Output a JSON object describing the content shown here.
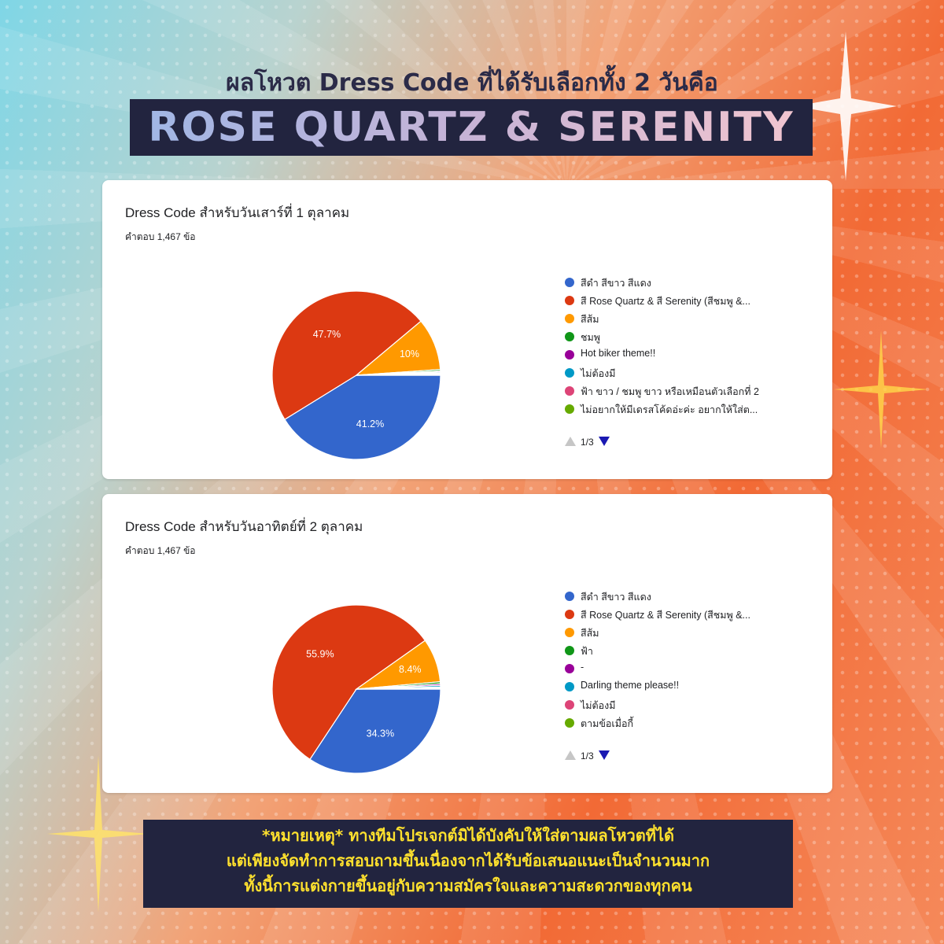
{
  "header": {
    "subtitle": "ผลโหวต Dress Code ที่ได้รับเลือกทั้ง 2 วันคือ",
    "title": "ROSE QUARTZ & SERENITY"
  },
  "cards": [
    {
      "title": "Dress Code สำหรับวันเสาร์ที่ 1 ตุลาคม",
      "responses": "คำตอบ 1,467 ข้อ",
      "pager": "1/3"
    },
    {
      "title": "Dress Code สำหรับวันอาทิตย์ที่ 2 ตุลาคม",
      "responses": "คำตอบ 1,467 ข้อ",
      "pager": "1/3"
    }
  ],
  "chart_data": [
    {
      "type": "pie",
      "title": "Dress Code สำหรับวันเสาร์ที่ 1 ตุลาคม",
      "categories": [
        "สีดำ สีขาว สีแดง",
        "สี Rose Quartz & สี Serenity (สีชมพู &...",
        "สีส้ม",
        "ชมพู",
        "Hot biker theme!!",
        "ไม่ต้องมี",
        "ฟ้า ขาว / ชมพู ขาว หรือเหมือนตัวเลือกที่ 2",
        "ไม่อยากให้มีเดรสโค้ดอ่ะค่ะ อยากให้ใส่ต..."
      ],
      "values": [
        41.2,
        47.7,
        10,
        0.3,
        0.2,
        0.2,
        0.2,
        0.2
      ],
      "labels": [
        "41.2%",
        "47.7%",
        "10%"
      ],
      "colors": [
        "#3366cc",
        "#dc3912",
        "#ff9900",
        "#109618",
        "#990099",
        "#0099c6",
        "#dd4477",
        "#66aa00"
      ]
    },
    {
      "type": "pie",
      "title": "Dress Code สำหรับวันอาทิตย์ที่ 2 ตุลาคม",
      "categories": [
        "สีดำ สีขาว สีแดง",
        "สี Rose Quartz & สี Serenity (สีชมพู &...",
        "สีส้ม",
        "ฟ้า",
        "-",
        "Darling theme please!!",
        "ไม่ต้องมี",
        "ตามข้อเมื่อกี้"
      ],
      "values": [
        34.3,
        55.9,
        8.4,
        0.4,
        0.3,
        0.3,
        0.2,
        0.2
      ],
      "labels": [
        "34.3%",
        "55.9%",
        "8.4%"
      ],
      "colors": [
        "#3366cc",
        "#dc3912",
        "#ff9900",
        "#109618",
        "#990099",
        "#0099c6",
        "#dd4477",
        "#66aa00"
      ]
    }
  ],
  "note": {
    "line1": "*หมายเหตุ* ทางทีมโปรเจกต์มิได้บังคับให้ใส่ตามผลโหวตที่ได้",
    "line2": "แต่เพียงจัดทำการสอบถามขึ้นเนื่องจากได้รับข้อเสนอแนะเป็นจำนวนมาก",
    "line3": "ทั้งนี้การแต่งกายขึ้นอยู่กับความสมัครใจและความสะดวกของทุกคน"
  }
}
